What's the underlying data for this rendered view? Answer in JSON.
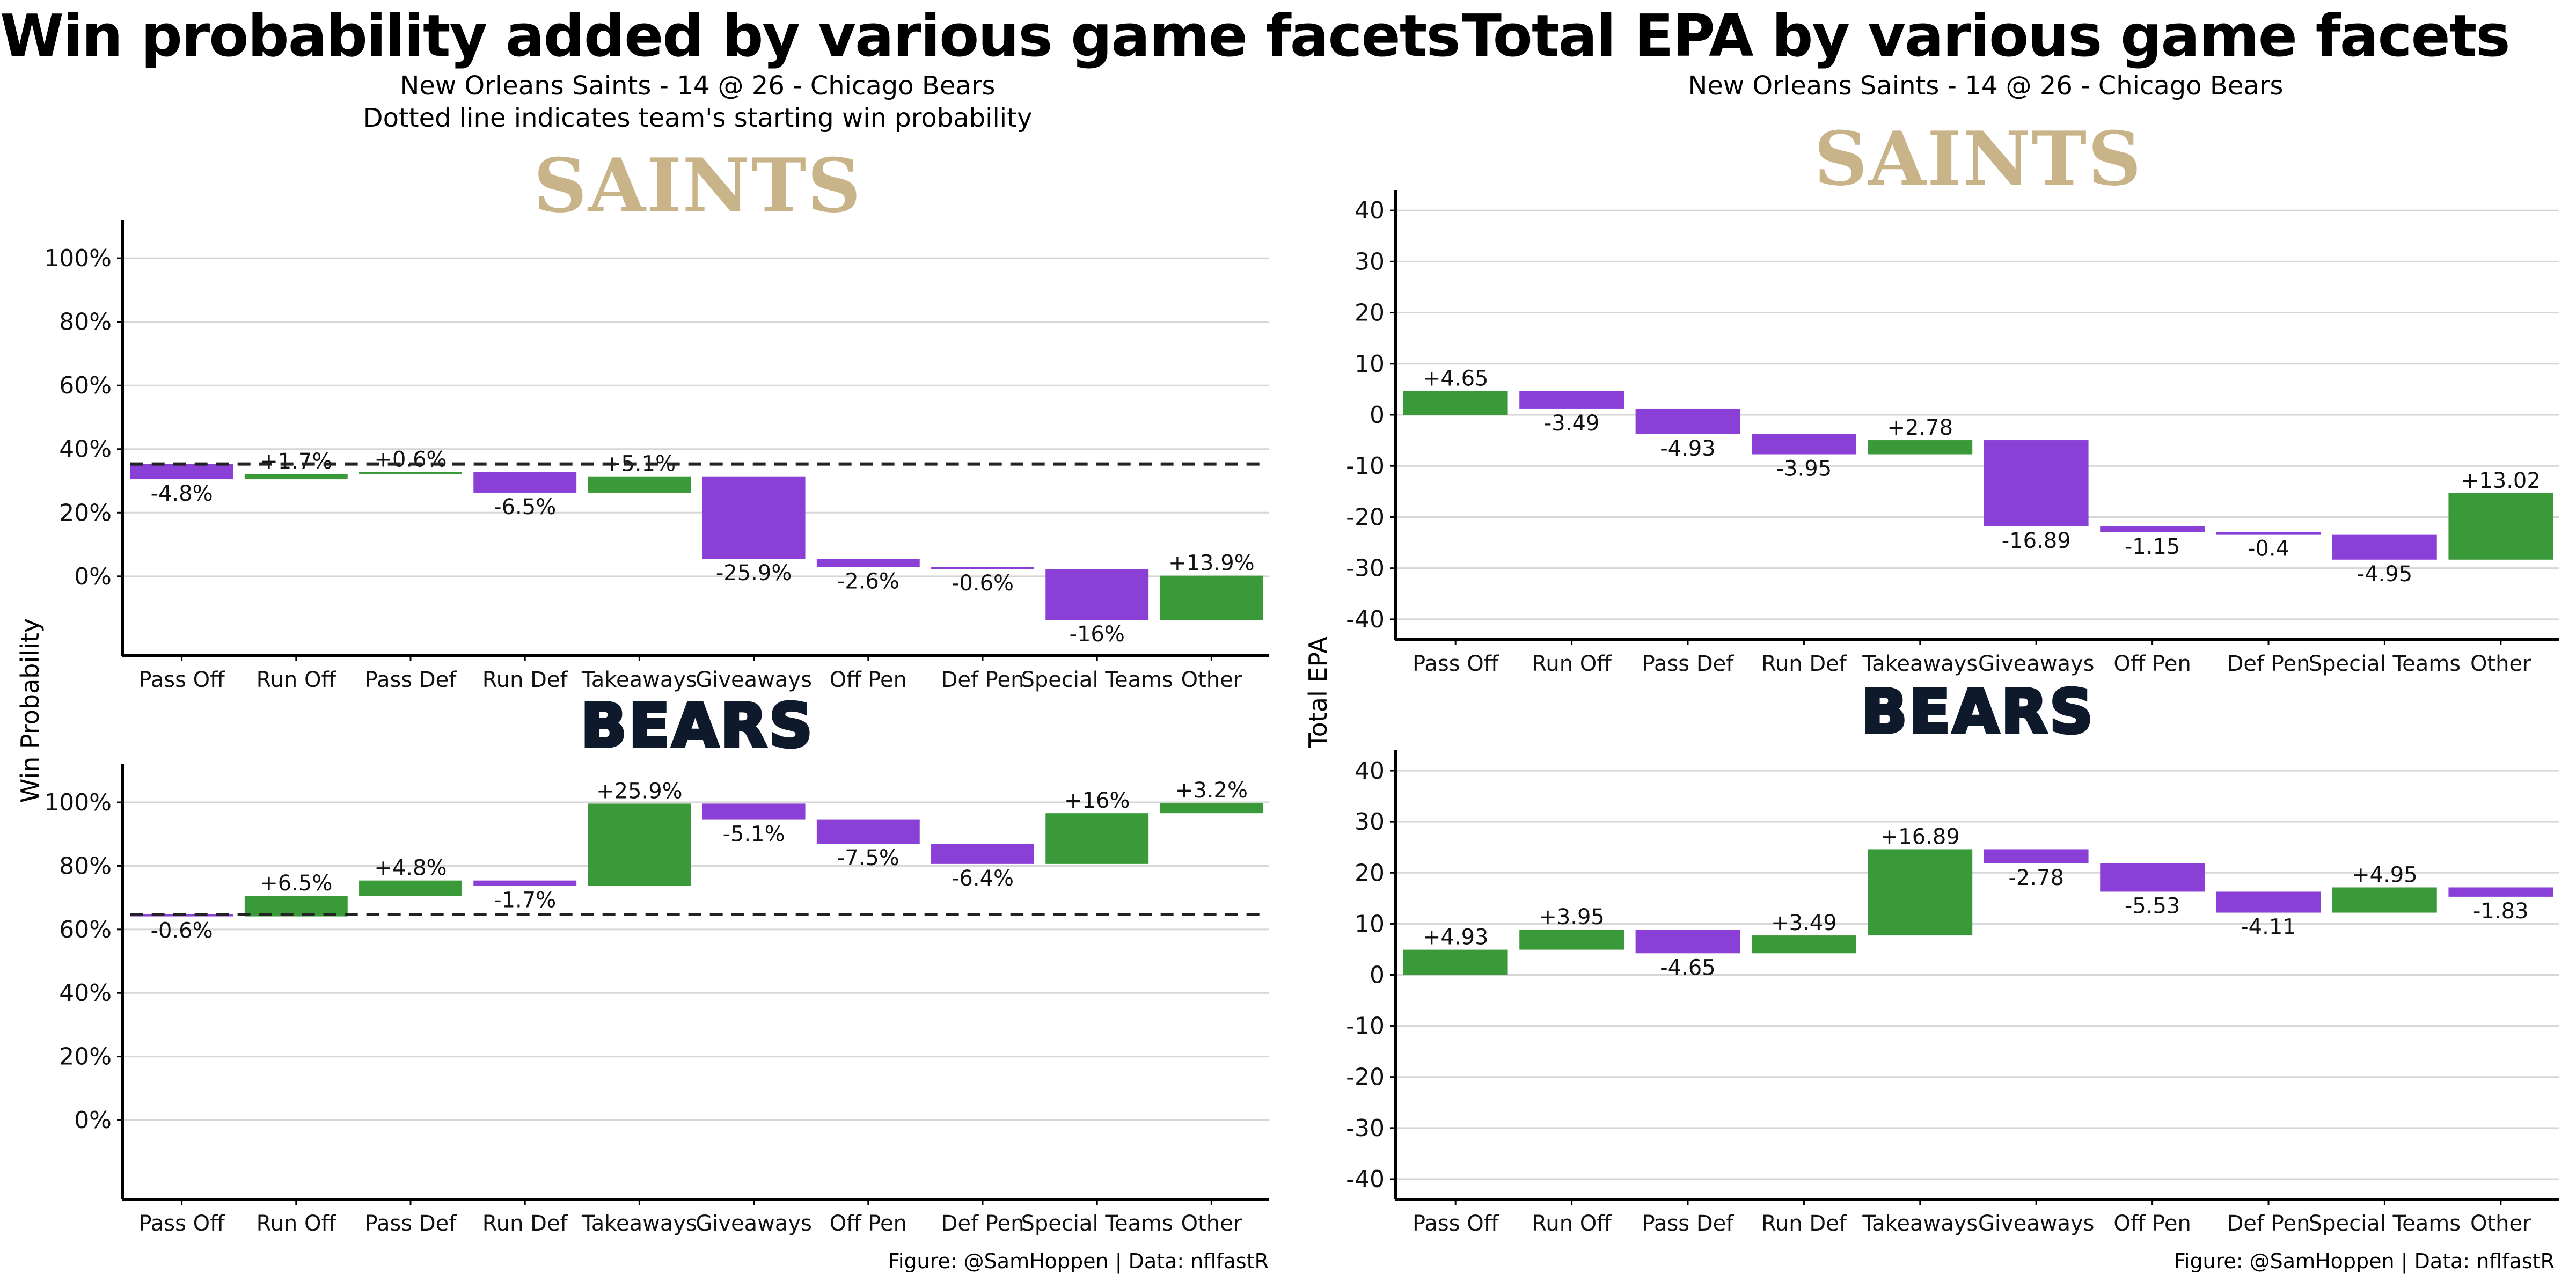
{
  "left": {
    "title": "Win probability added by various game facets",
    "subtitle1": "New Orleans Saints - 14 @ 26 - Chicago Bears",
    "subtitle2": "Dotted line indicates team's starting win probability",
    "ylabel": "Win Probability",
    "caption": "Figure: @SamHoppen | Data: nflfastR"
  },
  "right": {
    "title": "Total EPA by various game facets",
    "subtitle1": "New Orleans Saints - 14 @ 26 - Chicago Bears",
    "ylabel": "Total EPA",
    "caption": "Figure: @SamHoppen | Data: nflfastR"
  },
  "logos": {
    "saints": "SAINTS",
    "bears": "BEARS"
  },
  "colors": {
    "positive": "#3a9a3a",
    "negative": "#8a3fd6",
    "grid": "#d6d6d6",
    "axis": "#000000"
  },
  "chart_data": [
    {
      "type": "bar",
      "subtype": "waterfall",
      "panel": "saints-win-probability",
      "categories": [
        "Pass Off",
        "Run Off",
        "Pass Def",
        "Run Def",
        "Takeaways",
        "Giveaways",
        "Off Pen",
        "Def Pen",
        "Special Teams",
        "Other"
      ],
      "start": 35.3,
      "values": [
        -4.8,
        1.7,
        0.6,
        -6.5,
        5.1,
        -25.9,
        -2.6,
        -0.6,
        -16,
        13.9
      ],
      "labels": [
        "-4.8%",
        "+1.7%",
        "+0.6%",
        "-6.5%",
        "+5.1%",
        "-25.9%",
        "-2.6%",
        "-0.6%",
        "-16%",
        "+13.9%"
      ],
      "baseline": 35.3,
      "ylim": [
        -25,
        112
      ],
      "yticks": [
        0,
        20,
        40,
        60,
        80,
        100
      ],
      "ytick_labels": [
        "0%",
        "20%",
        "40%",
        "60%",
        "80%",
        "100%"
      ]
    },
    {
      "type": "bar",
      "subtype": "waterfall",
      "panel": "bears-win-probability",
      "categories": [
        "Pass Off",
        "Run Off",
        "Pass Def",
        "Run Def",
        "Takeaways",
        "Giveaways",
        "Off Pen",
        "Def Pen",
        "Special Teams",
        "Other"
      ],
      "start": 64.7,
      "values": [
        -0.6,
        6.5,
        4.8,
        -1.7,
        25.9,
        -5.1,
        -7.5,
        -6.4,
        16,
        3.2
      ],
      "labels": [
        "-0.6%",
        "+6.5%",
        "+4.8%",
        "-1.7%",
        "+25.9%",
        "-5.1%",
        "-7.5%",
        "-6.4%",
        "+16%",
        "+3.2%"
      ],
      "baseline": 64.7,
      "ylim": [
        -25,
        112
      ],
      "yticks": [
        0,
        20,
        40,
        60,
        80,
        100
      ],
      "ytick_labels": [
        "0%",
        "20%",
        "40%",
        "60%",
        "80%",
        "100%"
      ]
    },
    {
      "type": "bar",
      "subtype": "waterfall",
      "panel": "saints-total-epa",
      "categories": [
        "Pass Off",
        "Run Off",
        "Pass Def",
        "Run Def",
        "Takeaways",
        "Giveaways",
        "Off Pen",
        "Def Pen",
        "Special Teams",
        "Other"
      ],
      "start": 0,
      "values": [
        4.65,
        -3.49,
        -4.93,
        -3.95,
        2.78,
        -16.89,
        -1.15,
        -0.4,
        -4.95,
        13.02
      ],
      "labels": [
        "+4.65",
        "-3.49",
        "-4.93",
        "-3.95",
        "+2.78",
        "-16.89",
        "-1.15",
        "-0.4",
        "-4.95",
        "+13.02"
      ],
      "ylim": [
        -44,
        44
      ],
      "yticks": [
        -40,
        -30,
        -20,
        -10,
        0,
        10,
        20,
        30,
        40
      ],
      "ytick_labels": [
        "-40",
        "-30",
        "-20",
        "-10",
        "0",
        "10",
        "20",
        "30",
        "40"
      ]
    },
    {
      "type": "bar",
      "subtype": "waterfall",
      "panel": "bears-total-epa",
      "categories": [
        "Pass Off",
        "Run Off",
        "Pass Def",
        "Run Def",
        "Takeaways",
        "Giveaways",
        "Off Pen",
        "Def Pen",
        "Special Teams",
        "Other"
      ],
      "start": 0,
      "values": [
        4.93,
        3.95,
        -4.65,
        3.49,
        16.89,
        -2.78,
        -5.53,
        -4.11,
        4.95,
        -1.83
      ],
      "labels": [
        "+4.93",
        "+3.95",
        "-4.65",
        "+3.49",
        "+16.89",
        "-2.78",
        "-5.53",
        "-4.11",
        "+4.95",
        "-1.83"
      ],
      "ylim": [
        -44,
        44
      ],
      "yticks": [
        -40,
        -30,
        -20,
        -10,
        0,
        10,
        20,
        30,
        40
      ],
      "ytick_labels": [
        "-40",
        "-30",
        "-20",
        "-10",
        "0",
        "10",
        "20",
        "30",
        "40"
      ]
    }
  ]
}
